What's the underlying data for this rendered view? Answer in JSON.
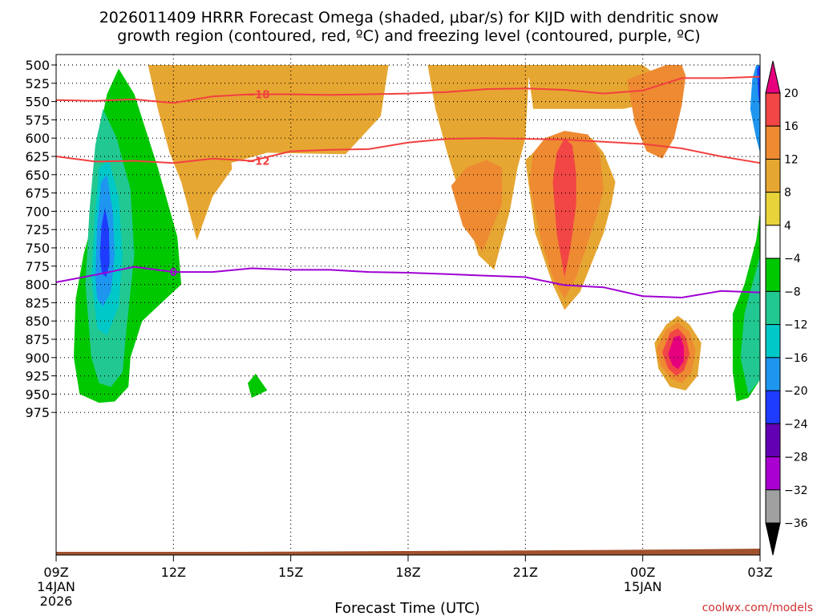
{
  "chart_data": {
    "type": "heatmap",
    "title_lines": [
      "2026011409 HRRR Forecast Omega (shaded, μbar/s) for KIJD with dendritic snow",
      "growth region (contoured, red, ºC) and freezing level (contoured, purple, ºC)"
    ],
    "xlabel": "Forecast Time (UTC)",
    "credit": "coolwx.com/models",
    "x_hours_range": [
      0,
      18
    ],
    "x_ticks": [
      {
        "h": 0,
        "label": "09Z",
        "sub": [
          "14JAN",
          "2026"
        ]
      },
      {
        "h": 3,
        "label": "12Z",
        "sub": []
      },
      {
        "h": 6,
        "label": "15Z",
        "sub": []
      },
      {
        "h": 9,
        "label": "18Z",
        "sub": []
      },
      {
        "h": 12,
        "label": "21Z",
        "sub": []
      },
      {
        "h": 15,
        "label": "00Z",
        "sub": [
          "15JAN"
        ]
      },
      {
        "h": 18,
        "label": "03Z",
        "sub": []
      }
    ],
    "y_levels": [
      500,
      525,
      550,
      575,
      600,
      625,
      650,
      675,
      700,
      725,
      750,
      775,
      800,
      825,
      850,
      875,
      900,
      925,
      950,
      975
    ],
    "colorbar": {
      "labels": [
        "20",
        "16",
        "12",
        "8",
        "4",
        "−4",
        "−8",
        "−12",
        "−16",
        "−20",
        "−24",
        "−28",
        "−32",
        "−36"
      ],
      "bins": [
        "#e6007e",
        "#f24545",
        "#ee8a32",
        "#e6a632",
        "#e8d43a",
        "#ffffff",
        "#00c800",
        "#22c891",
        "#00c8c8",
        "#1e96f0",
        "#1e3cff",
        "#6400b4",
        "#aa00d2",
        "#a0a0a0",
        "#000000"
      ]
    },
    "contours": [
      {
        "label": "−18",
        "color": "#f24040",
        "points": [
          [
            0,
            548
          ],
          [
            1,
            549
          ],
          [
            2,
            547
          ],
          [
            3,
            552
          ],
          [
            4,
            543
          ],
          [
            5,
            540
          ],
          [
            6,
            540
          ],
          [
            7,
            541
          ],
          [
            8,
            540
          ],
          [
            9,
            539
          ],
          [
            10,
            537
          ],
          [
            11,
            533
          ],
          [
            12,
            532
          ],
          [
            13,
            534
          ],
          [
            14,
            539
          ],
          [
            15,
            535
          ],
          [
            16,
            518
          ],
          [
            17,
            518
          ],
          [
            18,
            516
          ]
        ]
      },
      {
        "label": "−12",
        "color": "#f24040",
        "points": [
          [
            0,
            625
          ],
          [
            1,
            632
          ],
          [
            2,
            631
          ],
          [
            3,
            634
          ],
          [
            4,
            628
          ],
          [
            5,
            631
          ],
          [
            6,
            618
          ],
          [
            7,
            616
          ],
          [
            8,
            615
          ],
          [
            9,
            606
          ],
          [
            10,
            601
          ],
          [
            11,
            600
          ],
          [
            12,
            601
          ],
          [
            13,
            602
          ],
          [
            14,
            605
          ],
          [
            15,
            608
          ],
          [
            16,
            614
          ],
          [
            17,
            625
          ],
          [
            18,
            634
          ]
        ]
      },
      {
        "label": "0",
        "color": "#a000d2",
        "points": [
          [
            0,
            797
          ],
          [
            1,
            787
          ],
          [
            2,
            776
          ],
          [
            3,
            783
          ],
          [
            4,
            783
          ],
          [
            5,
            778
          ],
          [
            6,
            780
          ],
          [
            7,
            780
          ],
          [
            8,
            783
          ],
          [
            9,
            784
          ],
          [
            10,
            786
          ],
          [
            11,
            788
          ],
          [
            12,
            790
          ],
          [
            13,
            801
          ],
          [
            14,
            804
          ],
          [
            15,
            816
          ],
          [
            16,
            818
          ],
          [
            17,
            809
          ],
          [
            18,
            811
          ]
        ]
      }
    ],
    "regions": [
      {
        "color": "#e6a632",
        "points": [
          [
            2.35,
            500
          ],
          [
            2.6,
            560
          ],
          [
            2.9,
            620
          ],
          [
            3.2,
            660
          ],
          [
            3.6,
            740
          ],
          [
            4.0,
            680
          ],
          [
            4.5,
            642
          ],
          [
            4.3,
            560
          ],
          [
            4.0,
            510
          ],
          [
            3.9,
            500
          ]
        ]
      },
      {
        "color": "#e6a632",
        "points": [
          [
            2.9,
            500
          ],
          [
            3.5,
            570
          ],
          [
            4.4,
            635
          ],
          [
            5.4,
            620
          ],
          [
            7.4,
            622
          ],
          [
            8.3,
            570
          ],
          [
            8.5,
            500
          ]
        ]
      },
      {
        "color": "#e6a632",
        "points": [
          [
            9.5,
            500
          ],
          [
            9.7,
            560
          ],
          [
            10.0,
            620
          ],
          [
            10.4,
            690
          ],
          [
            10.8,
            760
          ],
          [
            11.2,
            780
          ],
          [
            11.6,
            700
          ],
          [
            11.8,
            640
          ],
          [
            12.0,
            600
          ],
          [
            12.1,
            500
          ]
        ]
      },
      {
        "color": "#e6a632",
        "points": [
          [
            12.0,
            500
          ],
          [
            12.1,
            520
          ],
          [
            12.2,
            560
          ],
          [
            14.5,
            560
          ],
          [
            15.6,
            548
          ],
          [
            15.5,
            520
          ],
          [
            15.0,
            500
          ]
        ]
      },
      {
        "color": "#e6a632",
        "points": [
          [
            12.0,
            630
          ],
          [
            12.25,
            730
          ],
          [
            12.7,
            800
          ],
          [
            13.0,
            835
          ],
          [
            13.4,
            810
          ],
          [
            14.0,
            730
          ],
          [
            14.2,
            690
          ],
          [
            14.3,
            660
          ],
          [
            14.0,
            620
          ],
          [
            13.7,
            600
          ],
          [
            13.2,
            595
          ],
          [
            12.6,
            600
          ]
        ]
      },
      {
        "color": "#e6a632",
        "points": [
          [
            15.3,
            880
          ],
          [
            15.6,
            855
          ],
          [
            15.9,
            843
          ],
          [
            16.2,
            855
          ],
          [
            16.5,
            880
          ],
          [
            16.4,
            925
          ],
          [
            16.1,
            945
          ],
          [
            15.7,
            940
          ],
          [
            15.4,
            915
          ]
        ]
      },
      {
        "color": "#ee8a32",
        "points": [
          [
            12.1,
            660
          ],
          [
            12.4,
            740
          ],
          [
            12.7,
            790
          ],
          [
            13.0,
            820
          ],
          [
            13.3,
            790
          ],
          [
            13.8,
            710
          ],
          [
            14.0,
            670
          ],
          [
            13.9,
            620
          ],
          [
            13.6,
            595
          ],
          [
            13.0,
            590
          ],
          [
            12.5,
            600
          ],
          [
            12.2,
            620
          ]
        ]
      },
      {
        "color": "#ee8a32",
        "points": [
          [
            10.1,
            665
          ],
          [
            10.4,
            720
          ],
          [
            10.9,
            755
          ],
          [
            11.4,
            690
          ],
          [
            11.4,
            640
          ],
          [
            11.0,
            630
          ],
          [
            10.5,
            640
          ]
        ]
      },
      {
        "color": "#ee8a32",
        "points": [
          [
            14.6,
            520
          ],
          [
            14.8,
            580
          ],
          [
            15.1,
            618
          ],
          [
            15.5,
            628
          ],
          [
            15.8,
            600
          ],
          [
            16.0,
            555
          ],
          [
            16.1,
            515
          ],
          [
            16.0,
            500
          ],
          [
            15.6,
            500
          ]
        ]
      },
      {
        "color": "#ee8a32",
        "points": [
          [
            15.35,
            888
          ],
          [
            15.6,
            862
          ],
          [
            15.9,
            852
          ],
          [
            16.2,
            865
          ],
          [
            16.35,
            890
          ],
          [
            16.25,
            920
          ],
          [
            16.0,
            935
          ],
          [
            15.7,
            928
          ],
          [
            15.45,
            910
          ]
        ]
      },
      {
        "color": "#f24545",
        "points": [
          [
            12.7,
            660
          ],
          [
            12.8,
            730
          ],
          [
            13.0,
            790
          ],
          [
            13.15,
            750
          ],
          [
            13.3,
            690
          ],
          [
            13.3,
            650
          ],
          [
            13.2,
            610
          ],
          [
            13.0,
            600
          ],
          [
            12.8,
            620
          ]
        ]
      },
      {
        "color": "#f24545",
        "points": [
          [
            15.5,
            893
          ],
          [
            15.7,
            866
          ],
          [
            15.9,
            860
          ],
          [
            16.1,
            872
          ],
          [
            16.2,
            895
          ],
          [
            16.05,
            918
          ],
          [
            15.85,
            925
          ],
          [
            15.65,
            915
          ]
        ]
      },
      {
        "color": "#e6007e",
        "points": [
          [
            15.65,
            895
          ],
          [
            15.8,
            872
          ],
          [
            15.95,
            870
          ],
          [
            16.05,
            885
          ],
          [
            16.05,
            905
          ],
          [
            15.9,
            916
          ],
          [
            15.75,
            910
          ]
        ]
      }
    ],
    "cool_regions": [
      {
        "color": "#00c800",
        "points": [
          [
            0.9,
            720
          ],
          [
            1.0,
            620
          ],
          [
            1.3,
            540
          ],
          [
            1.6,
            505
          ],
          [
            2.0,
            540
          ],
          [
            2.6,
            640
          ],
          [
            3.1,
            735
          ],
          [
            3.2,
            800
          ],
          [
            2.7,
            825
          ],
          [
            2.2,
            850
          ],
          [
            1.9,
            900
          ],
          [
            1.85,
            940
          ],
          [
            1.5,
            960
          ],
          [
            1.1,
            962
          ],
          [
            0.6,
            950
          ],
          [
            0.45,
            900
          ],
          [
            0.5,
            820
          ],
          [
            0.7,
            760
          ]
        ]
      },
      {
        "color": "#00c800",
        "points": [
          [
            4.9,
            935
          ],
          [
            5.1,
            922
          ],
          [
            5.4,
            945
          ],
          [
            5.0,
            955
          ]
        ]
      },
      {
        "color": "#00c800",
        "points": [
          [
            17.3,
            920
          ],
          [
            17.3,
            840
          ],
          [
            17.6,
            800
          ],
          [
            17.9,
            740
          ],
          [
            18,
            700
          ],
          [
            18,
            930
          ],
          [
            17.7,
            955
          ],
          [
            17.4,
            960
          ]
        ]
      },
      {
        "color": "#22c891",
        "points": [
          [
            0.75,
            800
          ],
          [
            0.85,
            700
          ],
          [
            1.0,
            610
          ],
          [
            1.2,
            560
          ],
          [
            1.55,
            600
          ],
          [
            1.9,
            670
          ],
          [
            2.0,
            760
          ],
          [
            1.8,
            860
          ],
          [
            1.7,
            920
          ],
          [
            1.4,
            940
          ],
          [
            1.1,
            935
          ],
          [
            0.9,
            900
          ]
        ]
      },
      {
        "color": "#22c891",
        "points": [
          [
            17.5,
            900
          ],
          [
            17.6,
            840
          ],
          [
            17.9,
            780
          ],
          [
            18,
            760
          ],
          [
            18,
            930
          ],
          [
            17.7,
            950
          ]
        ]
      },
      {
        "color": "#00c8c8",
        "points": [
          [
            0.9,
            790
          ],
          [
            1.0,
            700
          ],
          [
            1.1,
            640
          ],
          [
            1.35,
            630
          ],
          [
            1.6,
            680
          ],
          [
            1.7,
            760
          ],
          [
            1.6,
            830
          ],
          [
            1.3,
            870
          ],
          [
            1.05,
            860
          ]
        ]
      },
      {
        "color": "#1e96f0",
        "points": [
          [
            1.0,
            790
          ],
          [
            1.05,
            720
          ],
          [
            1.15,
            660
          ],
          [
            1.3,
            650
          ],
          [
            1.45,
            700
          ],
          [
            1.5,
            760
          ],
          [
            1.4,
            810
          ],
          [
            1.2,
            830
          ],
          [
            1.05,
            820
          ]
        ]
      },
      {
        "color": "#1e3cff",
        "points": [
          [
            1.12,
            760
          ],
          [
            1.16,
            720
          ],
          [
            1.25,
            695
          ],
          [
            1.35,
            725
          ],
          [
            1.37,
            770
          ],
          [
            1.28,
            790
          ],
          [
            1.17,
            785
          ]
        ]
      },
      {
        "color": "#1e96f0",
        "points": [
          [
            17.75,
            560
          ],
          [
            17.8,
            520
          ],
          [
            17.9,
            500
          ],
          [
            18,
            500
          ],
          [
            18,
            620
          ],
          [
            17.9,
            600
          ]
        ]
      },
      {
        "color": "#1e3cff",
        "points": [
          [
            17.92,
            505
          ],
          [
            18,
            500
          ],
          [
            18,
            560
          ],
          [
            17.95,
            540
          ]
        ]
      }
    ]
  }
}
